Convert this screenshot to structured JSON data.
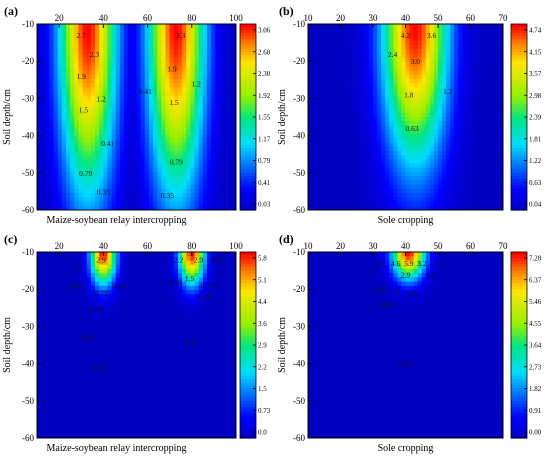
{
  "chart_data": [
    {
      "type": "heatmap",
      "panel_label": "(a)",
      "xlabel": "Maize-soybean relay intercropping",
      "ylabel": "Soil depth/cm",
      "x_ticks": [
        20,
        40,
        60,
        80,
        100
      ],
      "xlim": [
        10,
        100
      ],
      "y_ticks": [
        -10,
        -20,
        -30,
        -40,
        -50,
        -60
      ],
      "ylim": [
        -60,
        -10
      ],
      "colorbar_ticks": [
        "3.06",
        "2.68",
        "2.30",
        "1.92",
        "1.55",
        "1.17",
        "0.79",
        "0.41",
        "0.03"
      ],
      "value_range": [
        0.03,
        3.06
      ],
      "hotspots": [
        {
          "x": 33,
          "depth": -10,
          "value": 3.06,
          "sx": 9,
          "sy": 32
        },
        {
          "x": 73,
          "depth": -10,
          "value": 3.06,
          "sx": 9,
          "sy": 32
        }
      ],
      "contour_labels": [
        {
          "text": "2.7",
          "x": 30,
          "depth": -13
        },
        {
          "text": "2.3",
          "x": 36,
          "depth": -18
        },
        {
          "text": "1.9",
          "x": 30,
          "depth": -24
        },
        {
          "text": "1.2",
          "x": 39,
          "depth": -30
        },
        {
          "text": "1.5",
          "x": 31,
          "depth": -33
        },
        {
          "text": "0.41",
          "x": 59,
          "depth": -28
        },
        {
          "text": "0.41",
          "x": 42,
          "depth": -42
        },
        {
          "text": "0.79",
          "x": 32,
          "depth": -50
        },
        {
          "text": "0.35",
          "x": 40,
          "depth": -55
        },
        {
          "text": "2.3",
          "x": 75,
          "depth": -13
        },
        {
          "text": "1.9",
          "x": 71,
          "depth": -22
        },
        {
          "text": "1.2",
          "x": 82,
          "depth": -26
        },
        {
          "text": "1.5",
          "x": 72,
          "depth": -31
        },
        {
          "text": "0.79",
          "x": 73,
          "depth": -47
        },
        {
          "text": "0.35",
          "x": 69,
          "depth": -56
        }
      ]
    },
    {
      "type": "heatmap",
      "panel_label": "(b)",
      "xlabel": "Sole cropping",
      "ylabel": "Soil depth/cm",
      "x_ticks": [
        10,
        20,
        30,
        40,
        50,
        60,
        70
      ],
      "xlim": [
        10,
        70
      ],
      "y_ticks": [
        -10,
        -20,
        -30,
        -40,
        -50,
        -60
      ],
      "ylim": [
        -60,
        -10
      ],
      "colorbar_ticks": [
        "4.74",
        "4.15",
        "3.57",
        "2.98",
        "2.39",
        "1.81",
        "1.22",
        "0.63",
        "0.04"
      ],
      "value_range": [
        0.04,
        4.74
      ],
      "hotspots": [
        {
          "x": 43,
          "depth": -10,
          "value": 4.74,
          "sx": 7,
          "sy": 26
        }
      ],
      "contour_labels": [
        {
          "text": "4.2",
          "x": 40,
          "depth": -13
        },
        {
          "text": "3.6",
          "x": 48,
          "depth": -13
        },
        {
          "text": "2.4",
          "x": 36,
          "depth": -18
        },
        {
          "text": "3.0",
          "x": 43,
          "depth": -20
        },
        {
          "text": "1.8",
          "x": 41,
          "depth": -29
        },
        {
          "text": "1.2",
          "x": 53,
          "depth": -28
        },
        {
          "text": "0.63",
          "x": 42,
          "depth": -38
        }
      ]
    },
    {
      "type": "heatmap",
      "panel_label": "(c)",
      "xlabel": "Maize-soybean relay intercropping",
      "ylabel": "Soil depth/cm",
      "x_ticks": [
        20,
        40,
        60,
        80,
        100
      ],
      "xlim": [
        10,
        100
      ],
      "y_ticks": [
        -10,
        -20,
        -30,
        -40,
        -50,
        -60
      ],
      "ylim": [
        -60,
        -10
      ],
      "colorbar_ticks": [
        "5.8",
        "5.1",
        "4.4",
        "3.6",
        "2.9",
        "2.2",
        "1.5",
        "0.73",
        "0.0"
      ],
      "value_range": [
        0.0,
        5.8
      ],
      "hotspots": [
        {
          "x": 40,
          "depth": -10,
          "value": 5.8,
          "sx": 4,
          "sy": 6
        },
        {
          "x": 80,
          "depth": -10,
          "value": 5.8,
          "sx": 4,
          "sy": 6
        }
      ],
      "contour_labels": [
        {
          "text": "2.9",
          "x": 39,
          "depth": -12
        },
        {
          "text": "1.5",
          "x": 28,
          "depth": -14
        },
        {
          "text": "0.61",
          "x": 28,
          "depth": -19
        },
        {
          "text": "0.49",
          "x": 47,
          "depth": -19
        },
        {
          "text": "0.73",
          "x": 39,
          "depth": -21
        },
        {
          "text": "0.26",
          "x": 37,
          "depth": -25
        },
        {
          "text": "0.12",
          "x": 33,
          "depth": -33
        },
        {
          "text": "0.03",
          "x": 38,
          "depth": -41
        },
        {
          "text": "2.2",
          "x": 74,
          "depth": -12
        },
        {
          "text": "2.9",
          "x": 83,
          "depth": -12
        },
        {
          "text": "0.78",
          "x": 91,
          "depth": -12
        },
        {
          "text": "1.5",
          "x": 79,
          "depth": -17
        },
        {
          "text": "0.61",
          "x": 73,
          "depth": -18
        },
        {
          "text": "0.73",
          "x": 87,
          "depth": -19
        },
        {
          "text": "0.26",
          "x": 86,
          "depth": -22
        },
        {
          "text": "0.12",
          "x": 80,
          "depth": -34
        }
      ]
    },
    {
      "type": "heatmap",
      "panel_label": "(d)",
      "xlabel": "Sole cropping",
      "ylabel": "Soil depth/cm",
      "x_ticks": [
        10,
        20,
        30,
        40,
        50,
        60,
        70
      ],
      "xlim": [
        10,
        70
      ],
      "y_ticks": [
        -10,
        -20,
        -30,
        -40,
        -50,
        -60
      ],
      "ylim": [
        -60,
        -10
      ],
      "colorbar_ticks": [
        "7.28",
        "6.37",
        "5.46",
        "4.55",
        "3.64",
        "2.73",
        "1.82",
        "0.91",
        "0.00"
      ],
      "value_range": [
        0.0,
        7.28
      ],
      "hotspots": [
        {
          "x": 41,
          "depth": -10,
          "value": 7.28,
          "sx": 3.5,
          "sy": 5
        }
      ],
      "contour_labels": [
        {
          "text": "2.3",
          "x": 32,
          "depth": -13
        },
        {
          "text": "4.6",
          "x": 37,
          "depth": -13
        },
        {
          "text": "5.9",
          "x": 41,
          "depth": -13
        },
        {
          "text": "3.2",
          "x": 45,
          "depth": -13
        },
        {
          "text": "1.1",
          "x": 50,
          "depth": -13
        },
        {
          "text": "2.9",
          "x": 40,
          "depth": -16
        },
        {
          "text": "1.4",
          "x": 48,
          "depth": -16
        },
        {
          "text": "0.26",
          "x": 32,
          "depth": -20
        },
        {
          "text": "1.2",
          "x": 37,
          "depth": -20
        },
        {
          "text": "0.83",
          "x": 42,
          "depth": -21
        },
        {
          "text": "0.09",
          "x": 34,
          "depth": -24
        },
        {
          "text": "0.07",
          "x": 40,
          "depth": -40
        }
      ]
    }
  ]
}
